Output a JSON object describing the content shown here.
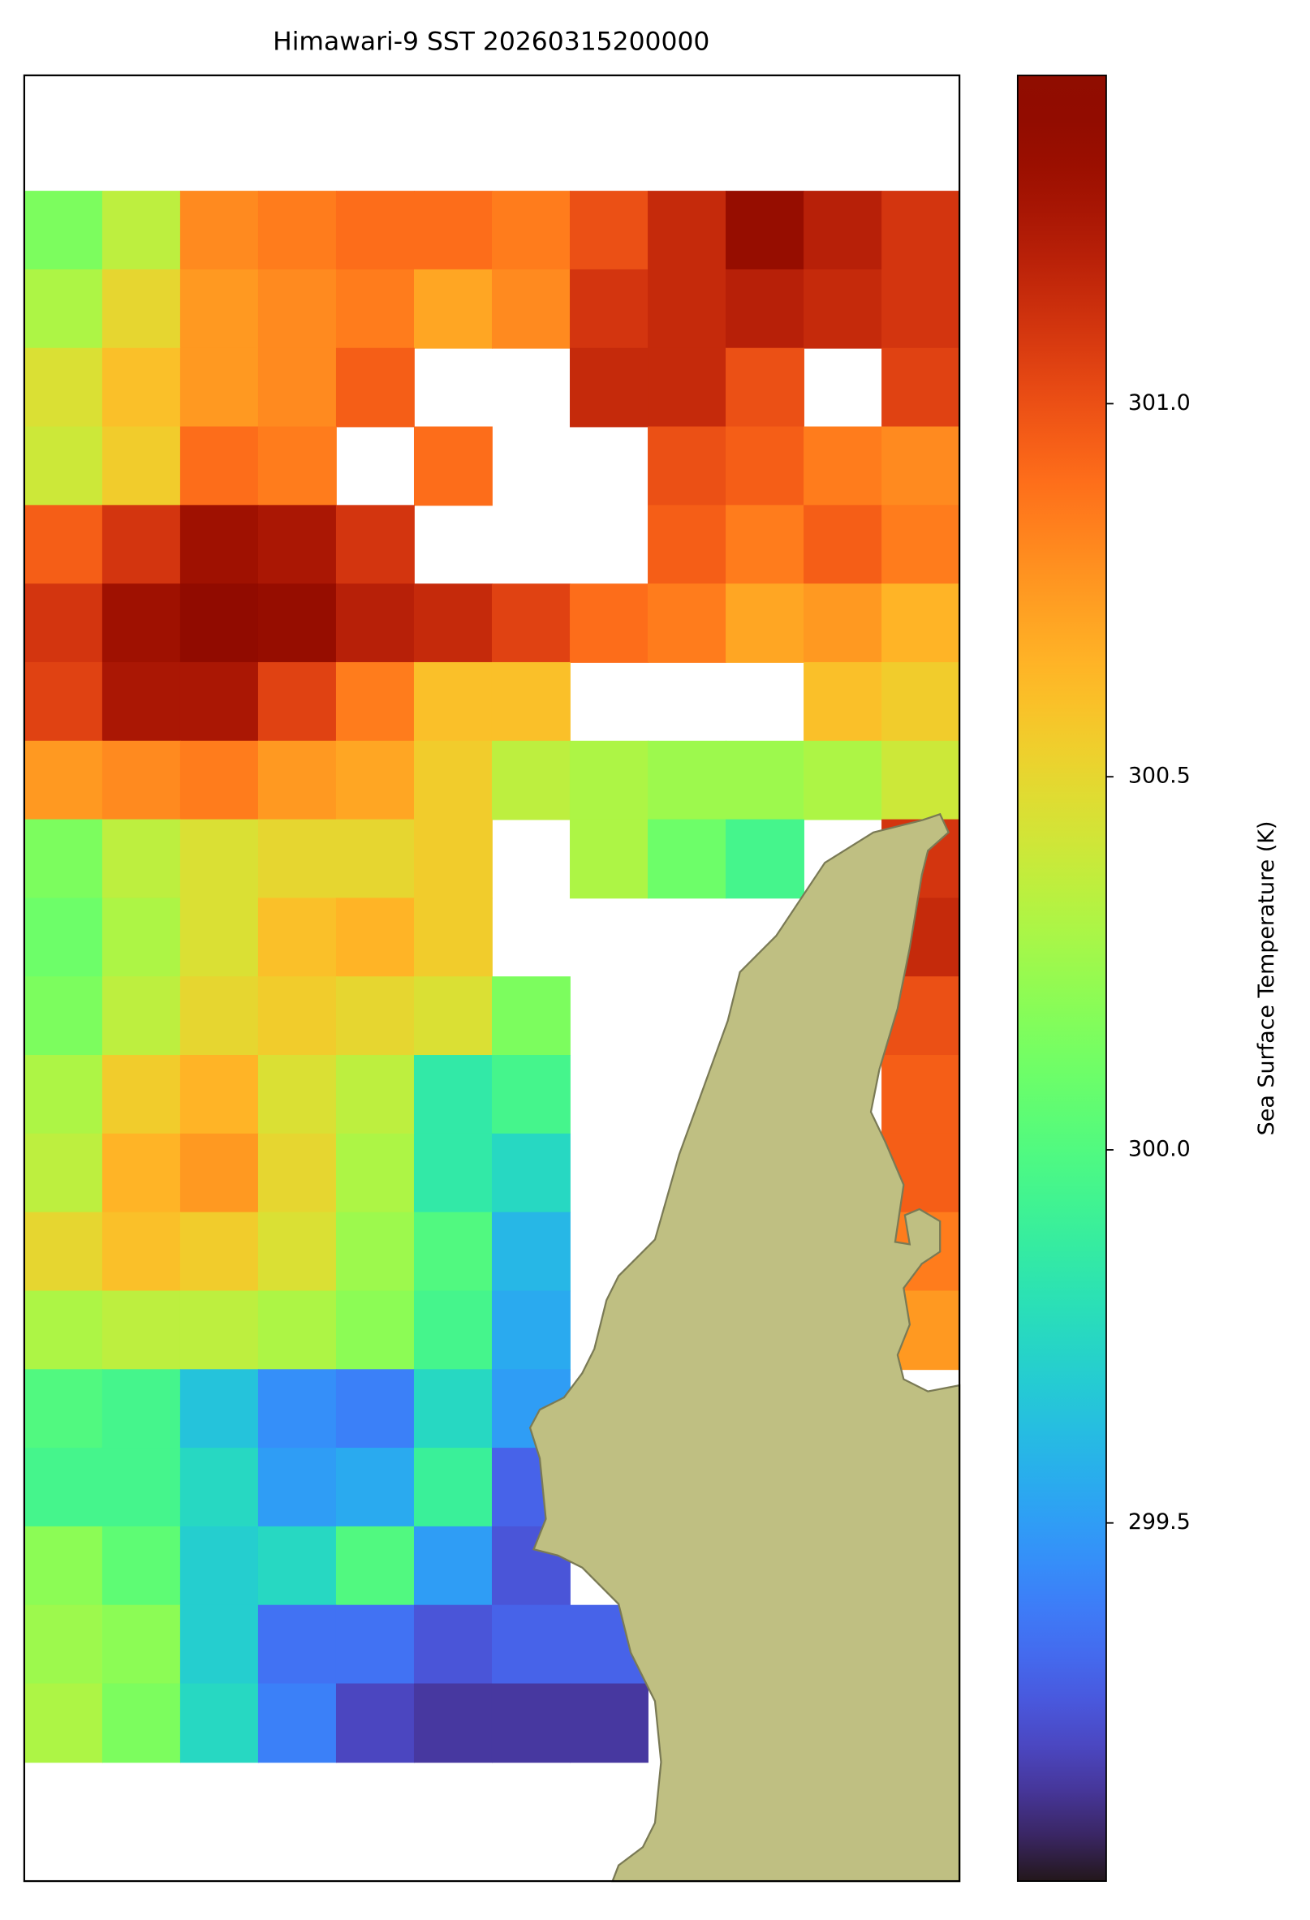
{
  "chart_data": {
    "type": "heatmap",
    "title": "Himawari-9 SST 20260315200000",
    "colorbar_label": "Sea Surface Temperature (K)",
    "colormap": "turbo",
    "clim": [
      299.02,
      301.44
    ],
    "cticks": [
      299.5,
      {
        "value": 300.0,
        "label": "300.0"
      },
      300.5,
      {
        "value": 301.0,
        "label": "301.0"
      }
    ],
    "values": [
      [
        300.15,
        300.35,
        300.8,
        300.85,
        300.9,
        300.9,
        300.85,
        301.0,
        301.15,
        301.35,
        301.2,
        301.1
      ],
      [
        300.3,
        300.5,
        300.75,
        300.8,
        300.85,
        300.7,
        300.8,
        301.1,
        301.15,
        301.2,
        301.15,
        301.1
      ],
      [
        300.45,
        300.6,
        300.75,
        300.8,
        300.95,
        null,
        null,
        301.15,
        301.15,
        301.0,
        null,
        301.05
      ],
      [
        300.4,
        300.55,
        300.9,
        300.85,
        null,
        300.9,
        null,
        null,
        301.0,
        300.95,
        300.85,
        300.8
      ],
      [
        300.95,
        301.1,
        301.3,
        301.25,
        301.1,
        null,
        null,
        null,
        300.95,
        300.85,
        300.95,
        300.85
      ],
      [
        301.1,
        301.3,
        301.4,
        301.35,
        301.2,
        301.15,
        301.05,
        300.9,
        300.85,
        300.7,
        300.75,
        300.65
      ],
      [
        301.05,
        301.25,
        301.25,
        301.05,
        300.85,
        300.6,
        300.6,
        null,
        null,
        null,
        300.6,
        300.55
      ],
      [
        300.75,
        300.8,
        300.85,
        300.75,
        300.7,
        300.55,
        300.35,
        300.3,
        300.25,
        300.25,
        300.3,
        300.4
      ],
      [
        300.15,
        300.35,
        300.45,
        300.5,
        300.5,
        300.55,
        null,
        300.3,
        300.1,
        299.95,
        null,
        301.1
      ],
      [
        300.1,
        300.3,
        300.45,
        300.6,
        300.65,
        300.55,
        null,
        null,
        null,
        null,
        null,
        301.15
      ],
      [
        300.15,
        300.35,
        300.5,
        300.55,
        300.5,
        300.45,
        300.15,
        null,
        null,
        null,
        null,
        301.0
      ],
      [
        300.3,
        300.55,
        300.65,
        300.45,
        300.35,
        299.85,
        299.95,
        null,
        null,
        null,
        null,
        300.95
      ],
      [
        300.35,
        300.65,
        300.75,
        300.5,
        300.3,
        299.85,
        299.75,
        null,
        null,
        null,
        null,
        300.95
      ],
      [
        300.5,
        300.6,
        300.55,
        300.45,
        300.25,
        300.0,
        299.6,
        null,
        null,
        null,
        null,
        300.85
      ],
      [
        300.3,
        300.35,
        300.35,
        300.3,
        300.2,
        299.95,
        299.55,
        null,
        null,
        null,
        null,
        300.75
      ],
      [
        300.0,
        299.95,
        299.65,
        299.45,
        299.4,
        299.75,
        299.5,
        null,
        null,
        null,
        null,
        null
      ],
      [
        299.95,
        299.95,
        299.75,
        299.5,
        299.55,
        299.9,
        299.3,
        null,
        null,
        null,
        null,
        null
      ],
      [
        300.2,
        300.05,
        299.7,
        299.75,
        300.0,
        299.5,
        299.25,
        null,
        null,
        null,
        null,
        null
      ],
      [
        300.25,
        300.2,
        299.7,
        299.35,
        299.35,
        299.25,
        299.3,
        299.3,
        null,
        null,
        null,
        null
      ],
      [
        300.3,
        300.15,
        299.75,
        299.4,
        299.2,
        299.15,
        299.15,
        299.15,
        null,
        null,
        null,
        null
      ]
    ]
  }
}
